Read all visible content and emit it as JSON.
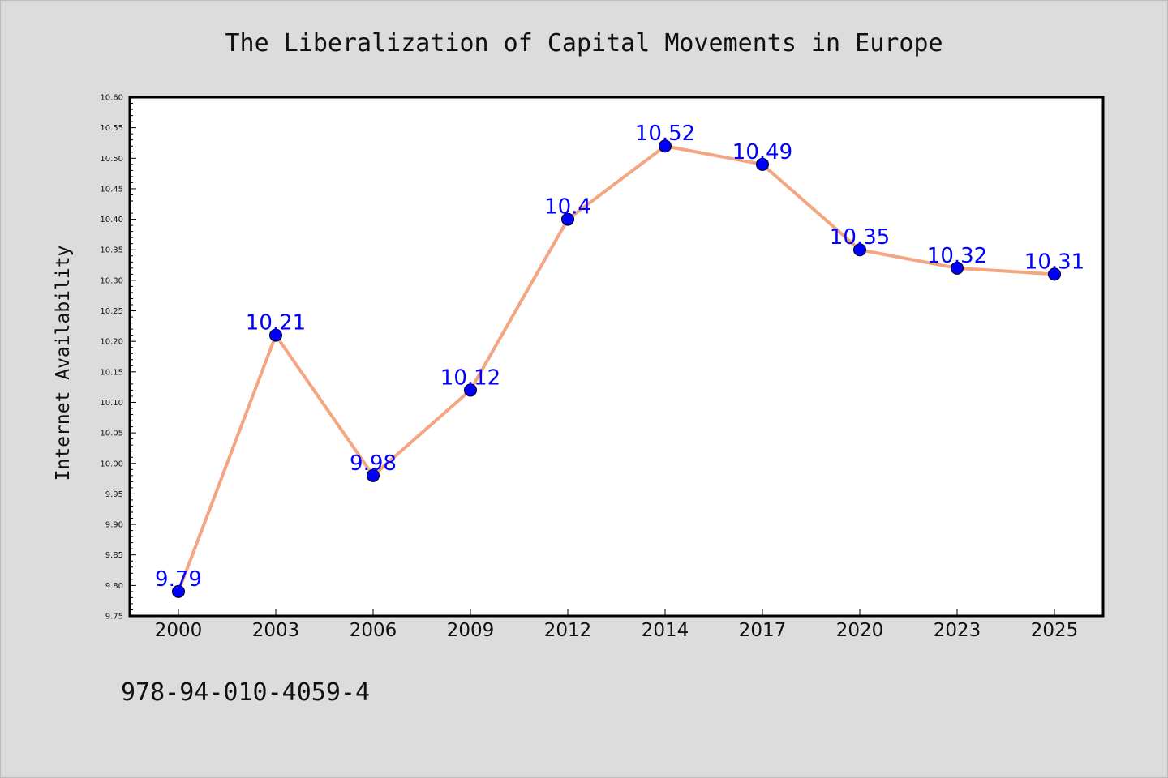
{
  "chart_data": {
    "type": "line",
    "title": "The Liberalization of Capital Movements in Europe",
    "xlabel": "",
    "ylabel": "Internet Availability",
    "categories": [
      "2000",
      "2003",
      "2006",
      "2009",
      "2012",
      "2014",
      "2017",
      "2020",
      "2023",
      "2025"
    ],
    "series": [
      {
        "values": [
          9.79,
          10.21,
          9.98,
          10.12,
          10.4,
          10.52,
          10.49,
          10.35,
          10.32,
          10.31
        ]
      }
    ],
    "data_labels": [
      "9.79",
      "10.21",
      "9.98",
      "10.12",
      "10.4",
      "10.52",
      "10.49",
      "10.35",
      "10.32",
      "10.31"
    ],
    "ylim": [
      9.75,
      10.6
    ],
    "yticks": [
      "9.75",
      "9.80",
      "9.85",
      "9.90",
      "9.95",
      "10.00",
      "10.05",
      "10.10",
      "10.15",
      "10.20",
      "10.25",
      "10.30",
      "10.35",
      "10.40",
      "10.45",
      "10.50",
      "10.55",
      "10.60"
    ],
    "grid": false,
    "line_color": "#f4a582",
    "marker_color": "#0000ff",
    "label_color": "#0000ff"
  },
  "footer_note": "978-94-010-4059-4"
}
